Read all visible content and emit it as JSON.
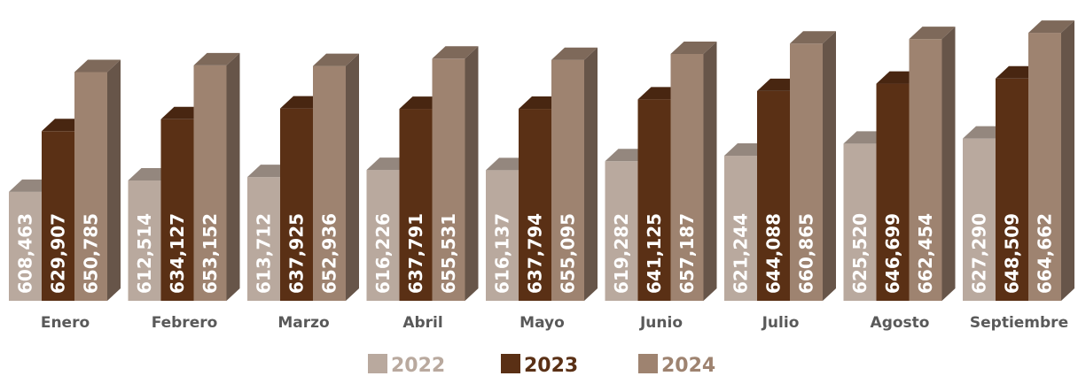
{
  "chart_data": {
    "type": "bar",
    "style": "3d-clustered-column",
    "categories": [
      "Enero",
      "Febrero",
      "Marzo",
      "Abril",
      "Mayo",
      "Junio",
      "Julio",
      "Agosto",
      "Septiembre"
    ],
    "series": [
      {
        "name": "2022",
        "color": "#b9a99e",
        "values": [
          608463,
          612514,
          613712,
          616226,
          616137,
          619282,
          621244,
          625520,
          627290
        ],
        "labels": [
          "608,463",
          "612,514",
          "613,712",
          "616,226",
          "616,137",
          "619,282",
          "621,244",
          "625,520",
          "627,290"
        ]
      },
      {
        "name": "2023",
        "color": "#5a3015",
        "values": [
          629907,
          634127,
          637925,
          637791,
          637794,
          641125,
          644088,
          646699,
          648509
        ],
        "labels": [
          "629,907",
          "634,127",
          "637,925",
          "637,791",
          "637,794",
          "641,125",
          "644,088",
          "646,699",
          "648,509"
        ]
      },
      {
        "name": "2024",
        "color": "#9e8370",
        "values": [
          650785,
          653152,
          652936,
          655531,
          655095,
          657187,
          660865,
          662454,
          664662
        ],
        "labels": [
          "650,785",
          "653,152",
          "652,936",
          "655,531",
          "655,095",
          "657,187",
          "660,865",
          "662,454",
          "664,662"
        ]
      }
    ],
    "ylim": [
      570000,
      670000
    ],
    "grid": false,
    "legend_position": "bottom"
  }
}
